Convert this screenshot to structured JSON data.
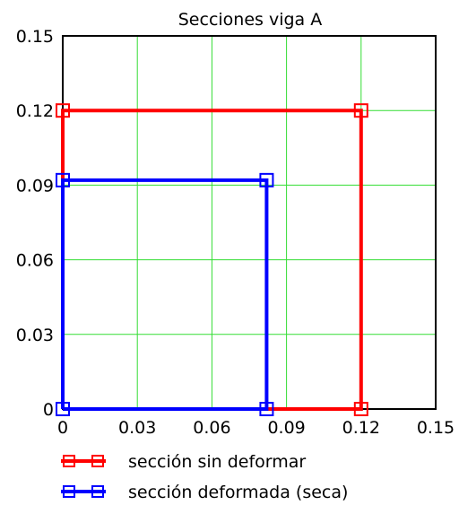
{
  "chart_data": {
    "type": "line",
    "title": "Secciones viga A",
    "xlabel": "",
    "ylabel": "",
    "xlim": [
      0,
      0.15
    ],
    "ylim": [
      0,
      0.15
    ],
    "grid": true,
    "x_ticks": [
      "0",
      "0.03",
      "0.06",
      "0.09",
      "0.12",
      "0.15"
    ],
    "x_tick_values": [
      0,
      0.03,
      0.06,
      0.09,
      0.12,
      0.15
    ],
    "y_ticks": [
      "0",
      "0.03",
      "0.06",
      "0.09",
      "0.12",
      "0.15"
    ],
    "y_tick_values": [
      0,
      0.03,
      0.06,
      0.09,
      0.12,
      0.15
    ],
    "legend_position": "bottom",
    "series": [
      {
        "name": "sección sin deformar",
        "color": "#ff0000",
        "marker": "square",
        "x": [
          0,
          0.12,
          0.12,
          0,
          0
        ],
        "y": [
          0,
          0,
          0.12,
          0.12,
          0
        ]
      },
      {
        "name": "sección deformada (seca)",
        "color": "#0000ff",
        "marker": "square",
        "x": [
          0,
          0.082,
          0.082,
          0,
          0
        ],
        "y": [
          0,
          0,
          0.092,
          0.092,
          0
        ]
      }
    ]
  }
}
